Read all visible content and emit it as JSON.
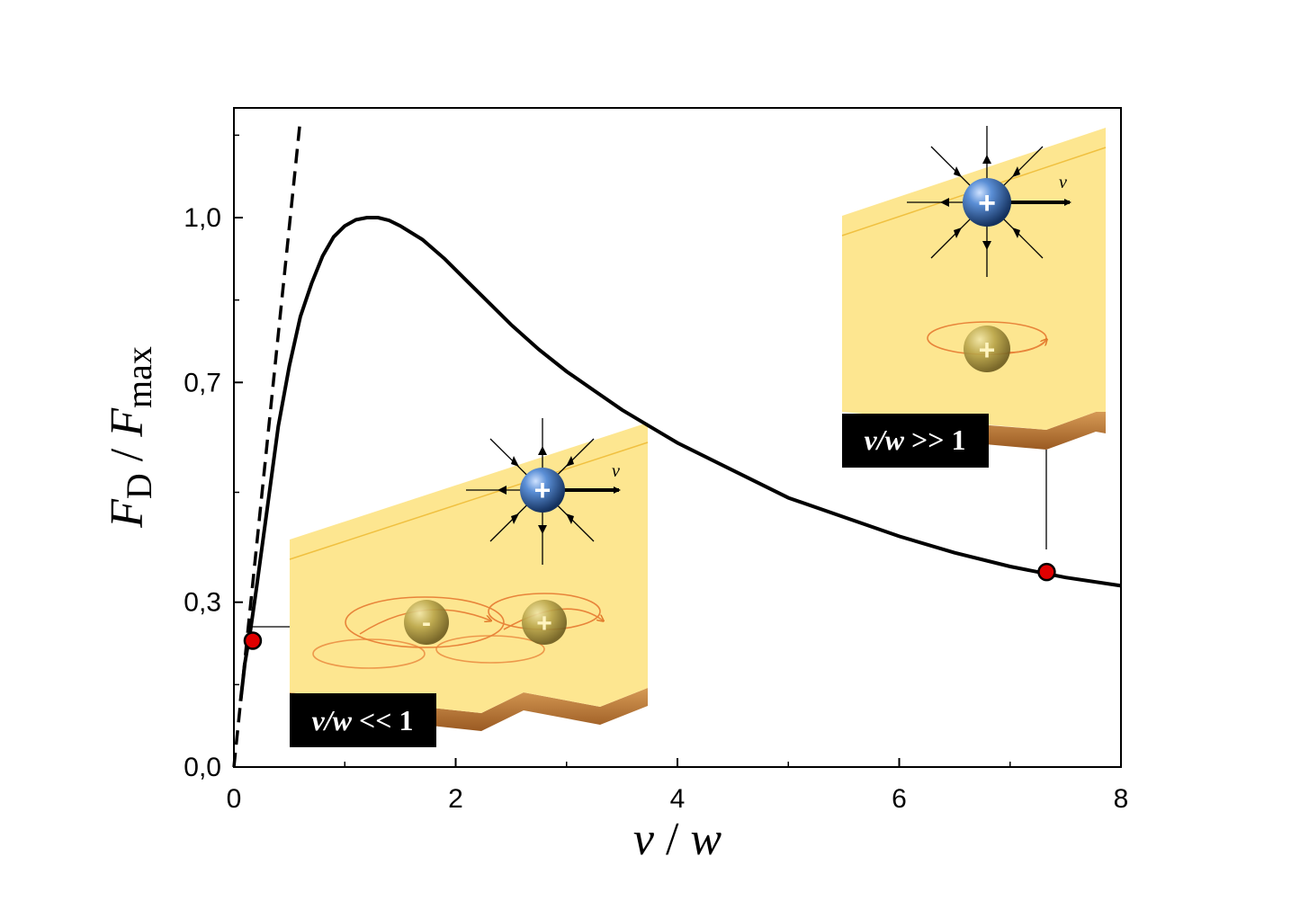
{
  "chart_data": {
    "type": "line",
    "xlabel": {
      "num": "v",
      "sep": " / ",
      "den": "w"
    },
    "ylabel": {
      "F1": "F",
      "sub1": "D",
      "sep": " / ",
      "F2": "F",
      "sub2": "max"
    },
    "xlim": [
      0,
      8
    ],
    "ylim": [
      0,
      1.16
    ],
    "xticks": [
      {
        "value": 0,
        "label": "0"
      },
      {
        "value": 2,
        "label": "2"
      },
      {
        "value": 4,
        "label": "4"
      },
      {
        "value": 6,
        "label": "6"
      },
      {
        "value": 8,
        "label": "8"
      }
    ],
    "yticks": [
      {
        "value": 0.0,
        "label": "0,0"
      },
      {
        "value": 0.3,
        "label": "0,3"
      },
      {
        "value": 0.7,
        "label": "0,7"
      },
      {
        "value": 1.0,
        "label": "1,0"
      }
    ],
    "series": [
      {
        "style": "solid",
        "color": "#000000",
        "x": [
          0.06,
          0.1,
          0.15,
          0.2,
          0.3,
          0.4,
          0.5,
          0.6,
          0.7,
          0.8,
          0.9,
          1.0,
          1.1,
          1.2,
          1.3,
          1.4,
          1.5,
          1.7,
          1.9,
          2.1,
          2.3,
          2.5,
          2.75,
          3.0,
          3.25,
          3.5,
          3.75,
          4.0,
          4.5,
          5.0,
          5.5,
          6.0,
          6.5,
          7.0,
          7.5,
          8.0
        ],
        "y": [
          0.12,
          0.19,
          0.25,
          0.32,
          0.47,
          0.62,
          0.73,
          0.82,
          0.88,
          0.93,
          0.965,
          0.985,
          0.996,
          1.0,
          1.0,
          0.995,
          0.985,
          0.96,
          0.925,
          0.885,
          0.845,
          0.805,
          0.76,
          0.72,
          0.685,
          0.65,
          0.62,
          0.59,
          0.54,
          0.49,
          0.455,
          0.42,
          0.39,
          0.365,
          0.345,
          0.33
        ]
      },
      {
        "style": "dashed",
        "color": "#000000",
        "x": [
          0.0,
          0.6
        ],
        "y": [
          0.0,
          1.18
        ]
      }
    ],
    "points": [
      {
        "x": 0.17,
        "y": 0.23,
        "color": "#e00000"
      },
      {
        "x": 7.33,
        "y": 0.355,
        "color": "#e00000"
      }
    ],
    "insets": [
      {
        "id": "low",
        "label_math": "v/w",
        "label_op": " << ",
        "label_num": "1",
        "charges": [
          "-",
          "+"
        ],
        "velocity_label": "v",
        "source_sign": "+"
      },
      {
        "id": "high",
        "label_math": "v/w",
        "label_op": " >> ",
        "label_num": "1",
        "charges": [
          "+"
        ],
        "velocity_label": "v",
        "source_sign": "+"
      }
    ],
    "colors": {
      "plane": "#fde58a",
      "plane_edge": "#c0803a",
      "ion": "#3a6fb5",
      "image_charge": "#b09a3a",
      "orbit": "#e07a2a"
    }
  }
}
